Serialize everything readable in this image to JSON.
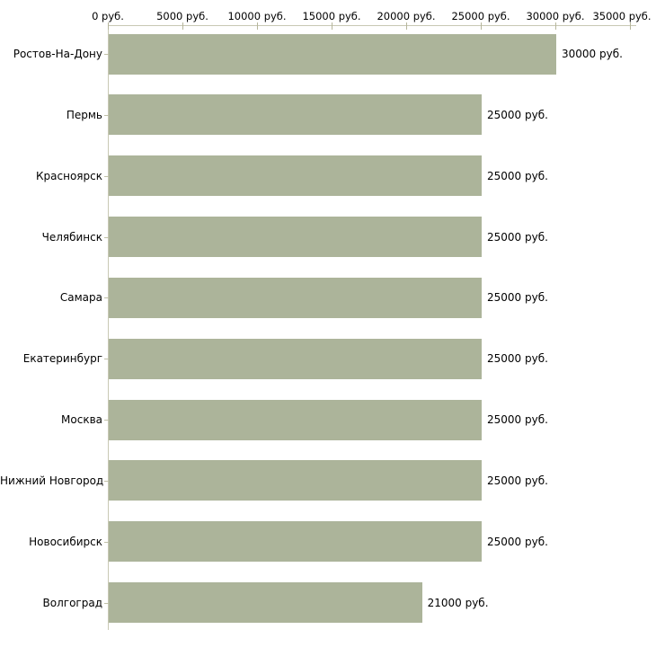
{
  "chart_data": {
    "type": "bar",
    "orientation": "horizontal",
    "title": "",
    "xlabel": "",
    "ylabel": "",
    "grid": false,
    "legend": false,
    "categories": [
      "Ростов-На-Дону",
      "Пермь",
      "Красноярск",
      "Челябинск",
      "Самара",
      "Екатеринбург",
      "Москва",
      "Нижний Новгород",
      "Новосибирск",
      "Волгоград"
    ],
    "values": [
      30000,
      25000,
      25000,
      25000,
      25000,
      25000,
      25000,
      25000,
      25000,
      21000
    ],
    "value_labels": [
      "30000 руб.",
      "25000 руб.",
      "25000 руб.",
      "25000 руб.",
      "25000 руб.",
      "25000 руб.",
      "25000 руб.",
      "25000 руб.",
      "25000 руб.",
      "21000 руб."
    ],
    "x_axis": {
      "min": 0,
      "max": 35000,
      "tick_values": [
        0,
        5000,
        10000,
        15000,
        20000,
        25000,
        30000,
        35000
      ],
      "tick_labels": [
        "0 руб.",
        "5000 руб.",
        "10000 руб.",
        "15000 руб.",
        "20000 руб.",
        "25000 руб.",
        "30000 руб.",
        "35000 руб."
      ]
    },
    "colors": {
      "bar": "#acb49a",
      "axis_line": "#c8c8b4",
      "tick_mark": "#b6b69c",
      "text": "#000000",
      "background": "#ffffff"
    }
  }
}
